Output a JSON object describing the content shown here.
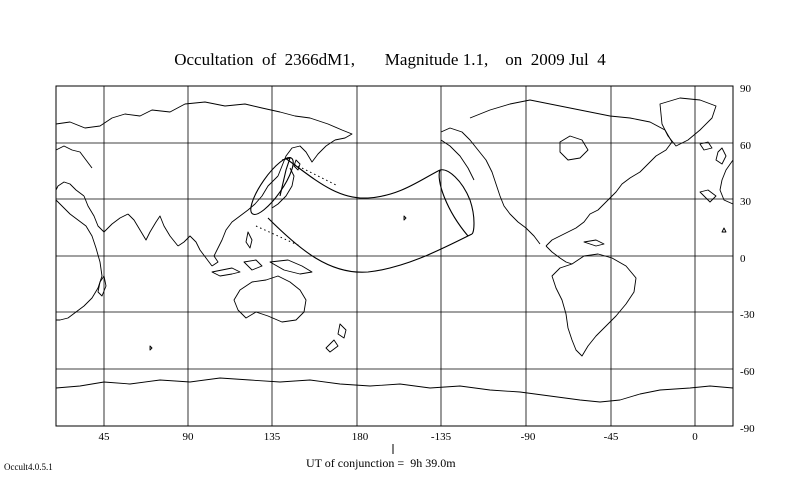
{
  "title": "Occultation  of  2366dM1,       Magnitude 1.1,    on  2009 Jul  4",
  "footer": {
    "version": "Occult4.0.5.1",
    "conjunction": "UT of conjunction =  9h 39.0m"
  },
  "map": {
    "projection": "equirectangular",
    "lon_labels": [
      "45",
      "90",
      "135",
      "180",
      "-135",
      "-90",
      "-45",
      "0"
    ],
    "lat_labels": [
      "90",
      "60",
      "30",
      "0",
      "-30",
      "-60",
      "-90"
    ],
    "grid": true,
    "colors": {
      "lines": "#000000",
      "background": "#ffffff"
    }
  }
}
